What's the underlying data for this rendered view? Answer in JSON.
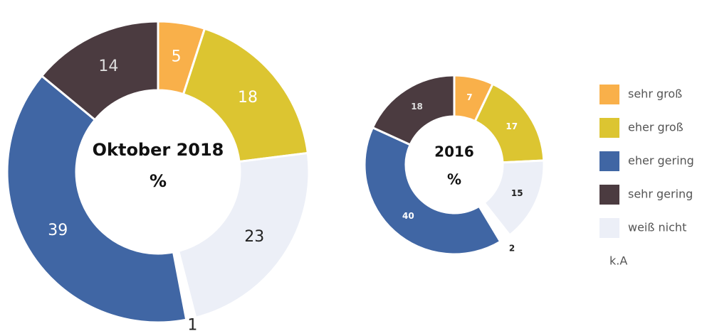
{
  "legend": {
    "labels": [
      "sehr groß",
      "eher groß",
      "weiß nicht",
      "k.A",
      "eher gering",
      "sehr gering"
    ],
    "colors": [
      "#f9b04a",
      "#dcc531",
      "#eceff7",
      "#ffffff",
      "#4066a4",
      "#4b3b40"
    ]
  },
  "chart_data": [
    {
      "type": "pie",
      "title": "Oktober 2018",
      "subtitle": "%",
      "values": [
        5,
        18,
        23,
        1,
        39,
        14
      ]
    },
    {
      "type": "pie",
      "title": "2016",
      "subtitle": "%",
      "values": [
        7,
        17,
        15,
        2,
        40,
        18
      ]
    }
  ]
}
